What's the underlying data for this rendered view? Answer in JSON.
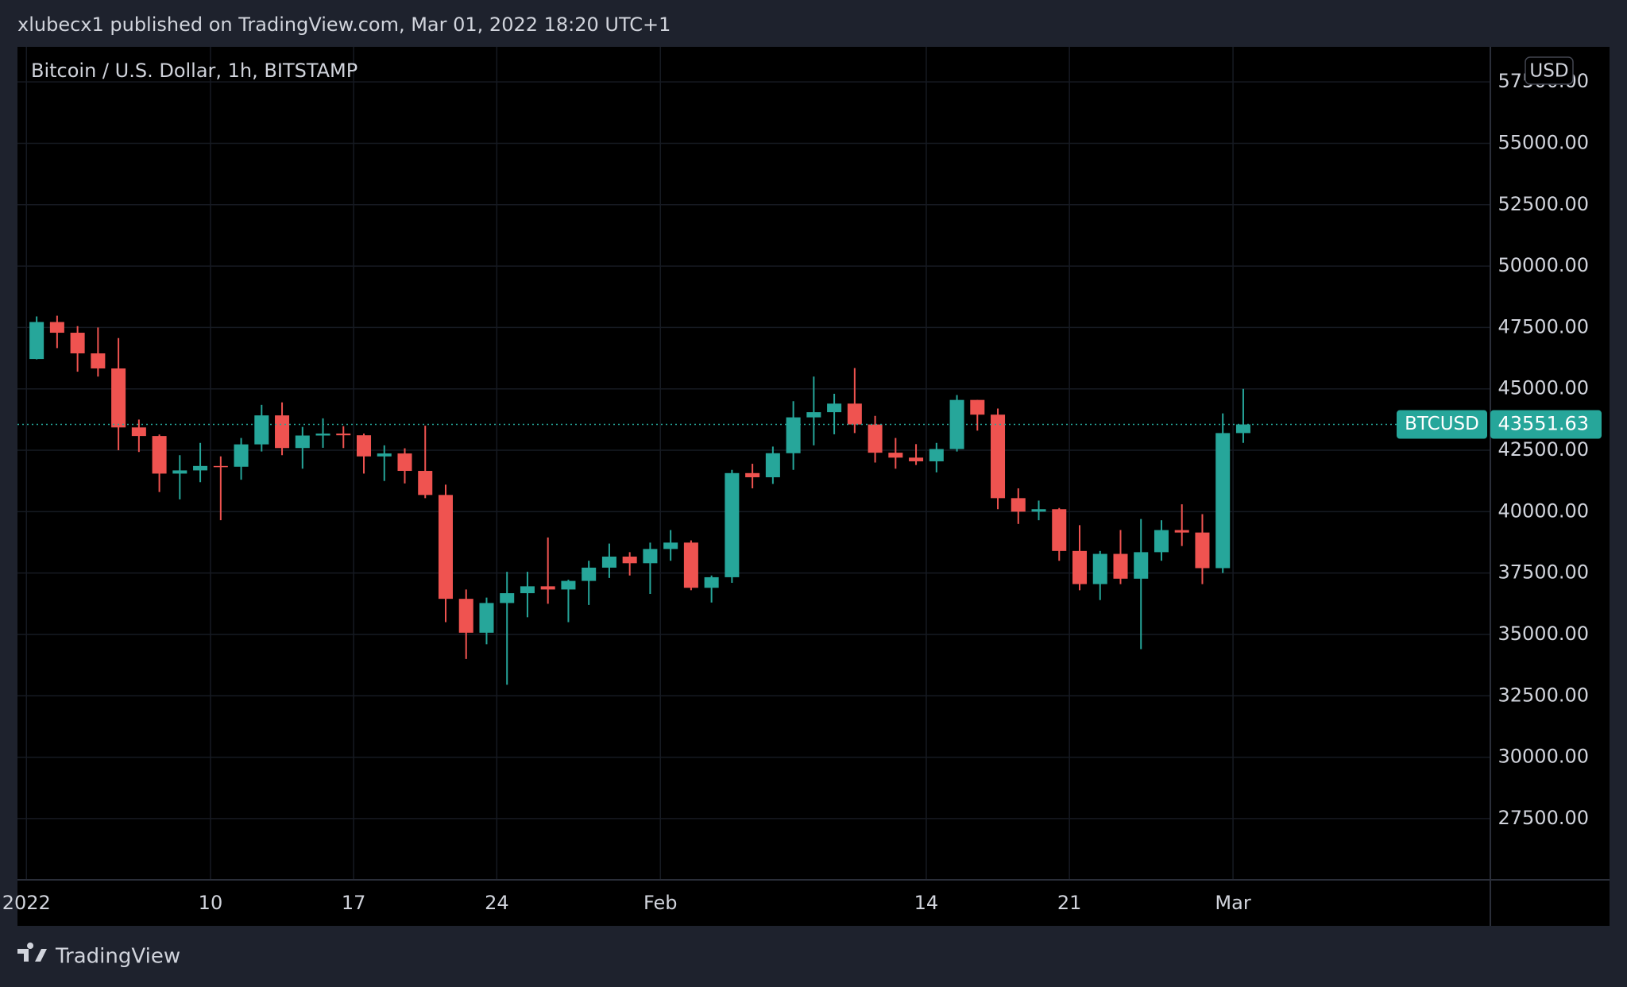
{
  "header": {
    "text": "xlubecx1 published on TradingView.com, Mar 01, 2022 18:20 UTC+1"
  },
  "footer": {
    "brand": "TradingView"
  },
  "chart_data": {
    "type": "candlestick",
    "title": "Bitcoin / U.S. Dollar, 1h, BITSTAMP",
    "currency": "USD",
    "symbol": "BTCUSD",
    "last_price": 43551.63,
    "up_color": "#26a69a",
    "down_color": "#ef5350",
    "grid": true,
    "x": [
      "2022-01-01",
      "2022-01-02",
      "2022-01-03",
      "2022-01-04",
      "2022-01-05",
      "2022-01-06",
      "2022-01-07",
      "2022-01-08",
      "2022-01-09",
      "2022-01-10",
      "2022-01-11",
      "2022-01-12",
      "2022-01-13",
      "2022-01-14",
      "2022-01-15",
      "2022-01-16",
      "2022-01-17",
      "2022-01-18",
      "2022-01-19",
      "2022-01-20",
      "2022-01-21",
      "2022-01-22",
      "2022-01-23",
      "2022-01-24",
      "2022-01-25",
      "2022-01-26",
      "2022-01-27",
      "2022-01-28",
      "2022-01-29",
      "2022-01-30",
      "2022-01-31",
      "2022-02-01",
      "2022-02-02",
      "2022-02-03",
      "2022-02-04",
      "2022-02-05",
      "2022-02-06",
      "2022-02-07",
      "2022-02-08",
      "2022-02-09",
      "2022-02-10",
      "2022-02-11",
      "2022-02-12",
      "2022-02-13",
      "2022-02-14",
      "2022-02-15",
      "2022-02-16",
      "2022-02-17",
      "2022-02-18",
      "2022-02-19",
      "2022-02-20",
      "2022-02-21",
      "2022-02-22",
      "2022-02-23",
      "2022-02-24",
      "2022-02-25",
      "2022-02-26",
      "2022-02-27",
      "2022-02-28",
      "2022-03-01"
    ],
    "open": [
      46217,
      47722,
      47286,
      46446,
      45832,
      43430,
      43080,
      41550,
      41680,
      41860,
      41830,
      42740,
      43920,
      42590,
      43100,
      43180,
      43110,
      42250,
      42370,
      41660,
      40680,
      36450,
      35070,
      36280,
      36680,
      36960,
      36830,
      37180,
      37720,
      38170,
      37900,
      38480,
      38740,
      36900,
      37330,
      41570,
      41400,
      42380,
      43840,
      44050,
      44400,
      43550,
      42400,
      42200,
      42050,
      42550,
      44550,
      43950,
      40550,
      40000,
      40100,
      38400,
      37050,
      38280,
      37270,
      38350,
      39250,
      39150,
      37700,
      43200
    ],
    "high": [
      47950,
      47980,
      47555,
      47500,
      47070,
      43750,
      43140,
      42300,
      42800,
      42250,
      43000,
      44350,
      44450,
      43450,
      43800,
      43480,
      43180,
      42700,
      42580,
      43500,
      41100,
      36830,
      36500,
      37550,
      37550,
      38950,
      37230,
      38000,
      38700,
      38350,
      38740,
      39250,
      38830,
      37400,
      41700,
      41950,
      42650,
      44500,
      45500,
      44800,
      45850,
      43900,
      43000,
      42750,
      42800,
      44750,
      44550,
      44200,
      40950,
      40450,
      40150,
      39450,
      38400,
      39250,
      39700,
      39650,
      40300,
      39900,
      44000,
      45000
    ],
    "low": [
      46200,
      46660,
      45700,
      45500,
      42500,
      42430,
      40800,
      40500,
      41200,
      39650,
      41300,
      42450,
      42300,
      41750,
      42600,
      42590,
      41550,
      41250,
      41150,
      40550,
      35500,
      34000,
      34600,
      32950,
      35700,
      36250,
      35500,
      36200,
      37300,
      37400,
      36650,
      38000,
      36800,
      36300,
      37100,
      40950,
      41130,
      41700,
      42700,
      43150,
      43200,
      42000,
      41750,
      41900,
      41600,
      42450,
      43300,
      40100,
      39500,
      39650,
      38000,
      36800,
      36400,
      37050,
      34400,
      38000,
      38600,
      37050,
      37500,
      42800
    ],
    "close": [
      47722,
      47286,
      46446,
      45832,
      43430,
      43080,
      41550,
      41680,
      41860,
      41830,
      42740,
      43920,
      42590,
      43100,
      43180,
      43110,
      42250,
      42370,
      41660,
      40680,
      36450,
      35070,
      36280,
      36680,
      36960,
      36830,
      37180,
      37720,
      38170,
      37900,
      38480,
      38740,
      36900,
      37330,
      41570,
      41400,
      42380,
      43840,
      44050,
      44400,
      43550,
      42400,
      42200,
      42050,
      42550,
      44550,
      43950,
      40550,
      40000,
      40100,
      38400,
      37050,
      38280,
      37270,
      38350,
      39250,
      39150,
      37700,
      43200,
      43551.63
    ],
    "xlim": [
      "2021-12-31T13:30",
      "2022-03-13T14:00"
    ],
    "xticks": [
      {
        "value": "2022-01-01",
        "label": "2022"
      },
      {
        "value": "2022-01-10",
        "label": "10"
      },
      {
        "value": "2022-01-17",
        "label": "17"
      },
      {
        "value": "2022-01-24",
        "label": "24"
      },
      {
        "value": "2022-02-01",
        "label": "Feb"
      },
      {
        "value": "2022-02-14",
        "label": "14"
      },
      {
        "value": "2022-02-21",
        "label": "21"
      },
      {
        "value": "2022-03-01",
        "label": "Mar"
      }
    ],
    "ylim": [
      25008,
      58928
    ],
    "yticks": [
      {
        "value": 27500,
        "label": "27500.00"
      },
      {
        "value": 30000,
        "label": "30000.00"
      },
      {
        "value": 32500,
        "label": "32500.00"
      },
      {
        "value": 35000,
        "label": "35000.00"
      },
      {
        "value": 37500,
        "label": "37500.00"
      },
      {
        "value": 40000,
        "label": "40000.00"
      },
      {
        "value": 42500,
        "label": "42500.00"
      },
      {
        "value": 45000,
        "label": "45000.00"
      },
      {
        "value": 47500,
        "label": "47500.00"
      },
      {
        "value": 50000,
        "label": "50000.00"
      },
      {
        "value": 52500,
        "label": "52500.00"
      },
      {
        "value": 55000,
        "label": "55000.00"
      },
      {
        "value": 57500,
        "label": "57500.00"
      }
    ]
  }
}
